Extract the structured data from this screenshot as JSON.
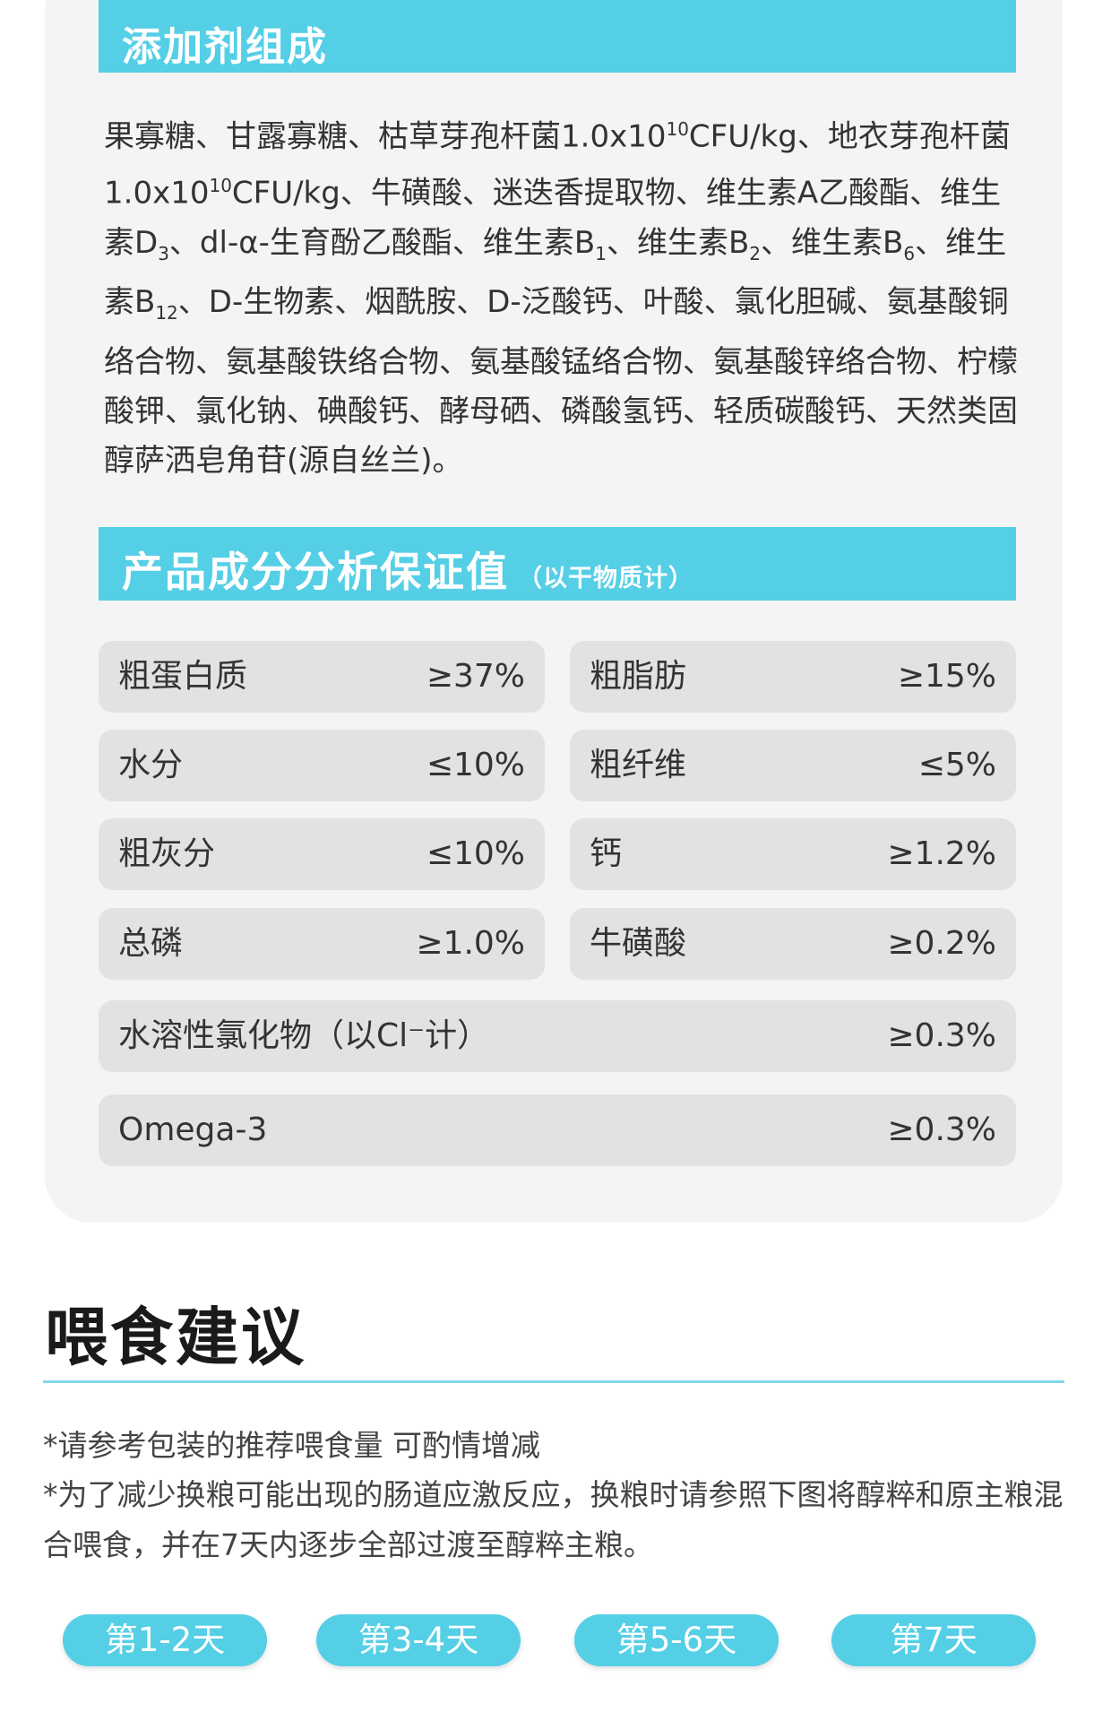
{
  "additives": {
    "title": "添加剂组成",
    "items": {
      "p1": "果寡糖、甘露寡糖、枯草芽孢杆菌1.0x10",
      "exp1": "10",
      "p2": "CFU/kg、地衣芽孢杆菌1.0x10",
      "exp2": "10",
      "p3": "CFU/kg、牛磺酸、迷迭香提取物、维生素A乙酸酯、维生素D",
      "sub_d": "3",
      "p4": "、dl-α-生育酚乙酸酯、维生素B",
      "sub_b1": "1",
      "p5": "、维生素B",
      "sub_b2": "2",
      "p6": "、维生素B",
      "sub_b6": "6",
      "p7": "、维生素B",
      "sub_b12": "12",
      "p8": "、D-生物素、烟酰胺、D-泛酸钙、叶酸、氯化胆碱、氨基酸铜络合物、氨基酸铁络合物、氨基酸锰络合物、氨基酸锌络合物、柠檬酸钾、氯化钠、碘酸钙、酵母硒、磷酸氢钙、轻质碳酸钙、天然类固醇萨洒皂角苷(源自丝兰)。"
    }
  },
  "analysis": {
    "title": "产品成分分析保证值",
    "subtitle": "（以干物质计）",
    "rows": [
      {
        "label": "粗蛋白质",
        "value": "≥37%"
      },
      {
        "label": "粗脂肪",
        "value": "≥15%"
      },
      {
        "label": "水分",
        "value": "≤10%"
      },
      {
        "label": "粗纤维",
        "value": "≤5%"
      },
      {
        "label": "粗灰分",
        "value": "≤10%"
      },
      {
        "label": "钙",
        "value": "≥1.2%"
      },
      {
        "label": "总磷",
        "value": "≥1.0%"
      },
      {
        "label": "牛磺酸",
        "value": "≥0.2%"
      },
      {
        "label": "水溶性氯化物（以Cl⁻计）",
        "value": "≥0.3%"
      },
      {
        "label": "Omega-3",
        "value": "≥0.3%"
      }
    ]
  },
  "feeding": {
    "title": "喂食建议",
    "note1": "*请参考包装的推荐喂食量 可酌情增减",
    "note2": "*为了减少换粮可能出现的肠道应激反应，换粮时请参照下图将醇粹和原主粮混合喂食，并在7天内逐步全部过渡至醇粹主粮。",
    "days": [
      "第1-2天",
      "第3-4天",
      "第5-6天",
      "第7天"
    ]
  },
  "colors": {
    "accent": "#55cfe6",
    "card": "#f4f4f4",
    "row": "#e2e2e2"
  }
}
